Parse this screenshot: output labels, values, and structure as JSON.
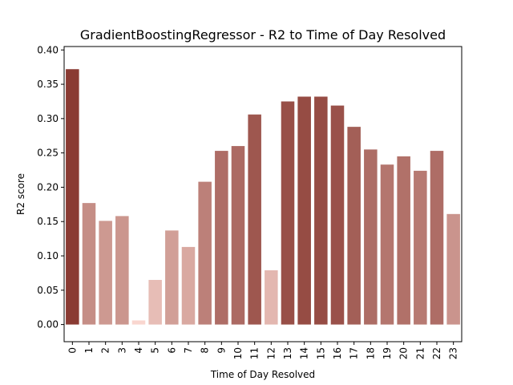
{
  "chart_data": {
    "type": "bar",
    "title": "GradientBoostingRegressor - R2 to Time of Day Resolved",
    "xlabel": "Time of Day Resolved",
    "ylabel": "R2 score",
    "categories": [
      "0",
      "1",
      "2",
      "3",
      "4",
      "5",
      "6",
      "7",
      "8",
      "9",
      "10",
      "11",
      "12",
      "13",
      "14",
      "15",
      "16",
      "17",
      "18",
      "19",
      "20",
      "21",
      "22",
      "23"
    ],
    "values": [
      0.372,
      0.177,
      0.151,
      0.158,
      0.006,
      0.065,
      0.137,
      0.113,
      0.208,
      0.253,
      0.26,
      0.306,
      0.079,
      0.325,
      0.332,
      0.332,
      0.319,
      0.288,
      0.255,
      0.233,
      0.245,
      0.224,
      0.253,
      0.161
    ],
    "ylim": [
      -0.025,
      0.405
    ],
    "yticks": [
      "0.00",
      "0.05",
      "0.10",
      "0.15",
      "0.20",
      "0.25",
      "0.30",
      "0.35",
      "0.40"
    ],
    "grid": false,
    "legend": "none",
    "color_scale": {
      "low": "#f9d6cf",
      "high": "#8a3b33"
    }
  }
}
